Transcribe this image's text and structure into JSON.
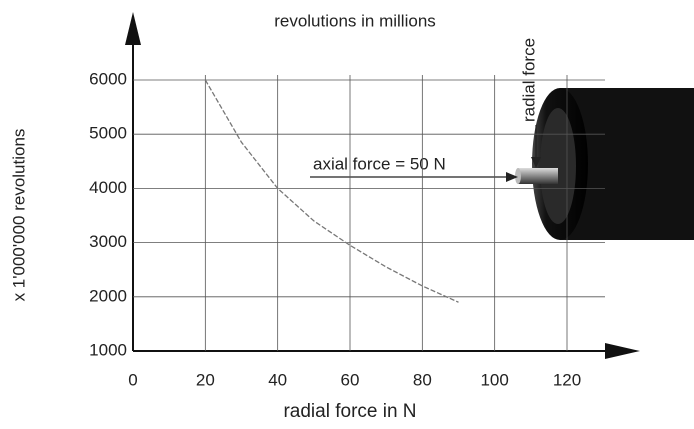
{
  "chart_data": {
    "type": "line",
    "title": "revolutions in millions",
    "x_label": "radial force in N",
    "y_label": "x 1'000'000 revolutions",
    "annotations": [
      "axial force = 50 N",
      "radial force"
    ],
    "x": [
      20,
      30,
      40,
      50,
      60,
      70,
      80,
      90
    ],
    "series": [
      {
        "color": "#777777",
        "values": [
          6000,
          4850,
          4000,
          3400,
          2950,
          2550,
          2200,
          1900
        ]
      }
    ],
    "xlim": [
      0,
      120
    ],
    "xticks": [
      0,
      20,
      40,
      60,
      80,
      100,
      120
    ],
    "ylim": [
      1000,
      6000
    ],
    "yticks": [
      1000,
      2000,
      3000,
      4000,
      5000,
      6000
    ],
    "grid": true
  }
}
